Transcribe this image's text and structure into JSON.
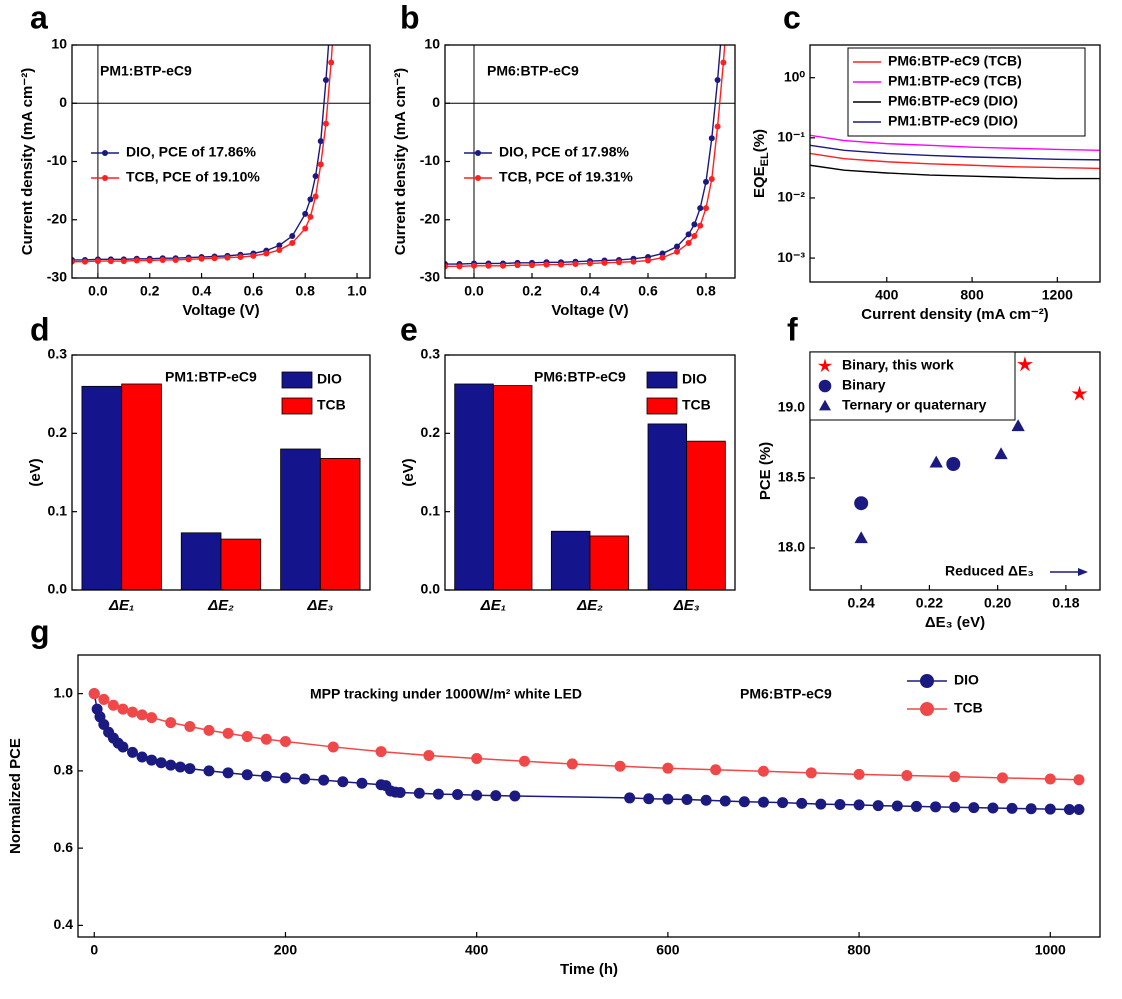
{
  "chart_data": [
    {
      "label": "a",
      "type": "line",
      "annotations": [
        "PM1:BTP-eC9"
      ],
      "xlabel": "Voltage (V)",
      "ylabel": "Current density (mA cm⁻²)",
      "xlim": [
        -0.1,
        1.05
      ],
      "ylim": [
        -30,
        10
      ],
      "xticks": [
        {
          "value": 0,
          "label": "0.0"
        },
        0.2,
        0.4,
        0.6,
        0.8,
        {
          "value": 1,
          "label": "1.0"
        }
      ],
      "yticks": [
        -30,
        -20,
        -10,
        0,
        10
      ],
      "zero_lines": true,
      "legend": "center-left",
      "x": [
        -0.1,
        -0.05,
        0,
        0.05,
        0.1,
        0.15,
        0.2,
        0.25,
        0.3,
        0.35,
        0.4,
        0.45,
        0.5,
        0.55,
        0.6,
        0.65,
        0.7,
        0.75,
        0.8,
        0.82,
        0.84,
        0.86,
        0.88,
        0.9,
        0.92
      ],
      "series": [
        {
          "name": "DIO, PCE of 17.86%",
          "color": "#1a1a80",
          "marker": "circle",
          "values": [
            -26.9,
            -26.9,
            -26.8,
            -26.8,
            -26.8,
            -26.7,
            -26.7,
            -26.6,
            -26.6,
            -26.5,
            -26.4,
            -26.3,
            -26.2,
            -26.0,
            -25.8,
            -25.3,
            -24.4,
            -22.8,
            -19,
            -16.5,
            -12.5,
            -6.5,
            4,
            16,
            null
          ]
        },
        {
          "name": "TCB, PCE of 19.10%",
          "color": "#ff2020",
          "marker": "circle",
          "values": [
            -27.2,
            -27.2,
            -27.1,
            -27.1,
            -27.1,
            -27.0,
            -27.0,
            -26.9,
            -26.9,
            -26.8,
            -26.7,
            -26.6,
            -26.5,
            -26.4,
            -26.2,
            -25.8,
            -25.2,
            -24.0,
            -21.5,
            -19.5,
            -16.0,
            -10.5,
            -3.5,
            7,
            20
          ]
        }
      ]
    },
    {
      "label": "b",
      "type": "line",
      "annotations": [
        "PM6:BTP-eC9"
      ],
      "xlabel": "Voltage (V)",
      "ylabel": "Current density (mA cm⁻²)",
      "xlim": [
        -0.1,
        0.9
      ],
      "ylim": [
        -30,
        10
      ],
      "xticks": [
        {
          "value": 0,
          "label": "0.0"
        },
        0.2,
        0.4,
        0.6,
        0.8
      ],
      "yticks": [
        -30,
        -20,
        -10,
        0,
        10
      ],
      "zero_lines": true,
      "legend": "center-left",
      "x": [
        -0.1,
        -0.05,
        0,
        0.05,
        0.1,
        0.15,
        0.2,
        0.25,
        0.3,
        0.35,
        0.4,
        0.45,
        0.5,
        0.55,
        0.6,
        0.65,
        0.7,
        0.74,
        0.76,
        0.78,
        0.8,
        0.82,
        0.84,
        0.86,
        0.88
      ],
      "series": [
        {
          "name": "DIO, PCE of 17.98%",
          "color": "#1a1a80",
          "marker": "circle",
          "values": [
            -27.6,
            -27.6,
            -27.5,
            -27.5,
            -27.5,
            -27.4,
            -27.4,
            -27.3,
            -27.3,
            -27.2,
            -27.1,
            -27.0,
            -26.9,
            -26.7,
            -26.4,
            -25.8,
            -24.6,
            -22.5,
            -20.8,
            -18.0,
            -13.5,
            -6,
            4,
            16,
            null
          ]
        },
        {
          "name": "TCB, PCE of 19.31%",
          "color": "#ff2020",
          "marker": "circle",
          "values": [
            -28.0,
            -28.0,
            -27.9,
            -27.9,
            -27.9,
            -27.8,
            -27.8,
            -27.7,
            -27.7,
            -27.6,
            -27.5,
            -27.4,
            -27.3,
            -27.2,
            -27.0,
            -26.5,
            -25.5,
            -24.0,
            -22.8,
            -21,
            -18.0,
            -13,
            -4,
            7,
            20
          ]
        }
      ]
    },
    {
      "label": "c",
      "type": "line",
      "xlabel": "Current density (mA cm⁻²)",
      "ylabel": "EQE",
      "ylabel_sub": "EL",
      "ylabel_unit": "(%)",
      "log_y": true,
      "xlim": [
        40,
        1400
      ],
      "ylim": [
        0.0004,
        3.5
      ],
      "xticks": [
        400,
        800,
        1200
      ],
      "yticks": [
        {
          "value": 0.001,
          "label": "10⁻³"
        },
        {
          "value": 0.01,
          "label": "10⁻²"
        },
        {
          "value": 0.1,
          "label": "10⁻¹"
        },
        {
          "value": 1,
          "label": "10⁰"
        }
      ],
      "legend": "upper-right",
      "legend_frame": true,
      "x": [
        40,
        200,
        400,
        600,
        800,
        1000,
        1200,
        1400
      ],
      "series": [
        {
          "name": "PM6:BTP-eC9 (TCB)",
          "color": "#ff2020",
          "values": [
            0.055,
            0.045,
            0.04,
            0.037,
            0.035,
            0.033,
            0.032,
            0.031
          ]
        },
        {
          "name": "PM1:BTP-eC9 (TCB)",
          "color": "#ff00ff",
          "values": [
            0.11,
            0.09,
            0.08,
            0.075,
            0.07,
            0.067,
            0.064,
            0.062
          ]
        },
        {
          "name": "PM6:BTP-eC9 (DIO)",
          "color": "#000000",
          "values": [
            0.035,
            0.029,
            0.026,
            0.024,
            0.023,
            0.022,
            0.021,
            0.021
          ]
        },
        {
          "name": "PM1:BTP-eC9 (DIO)",
          "color": "#1a1a80",
          "values": [
            0.075,
            0.062,
            0.055,
            0.051,
            0.048,
            0.046,
            0.044,
            0.043
          ]
        }
      ]
    },
    {
      "label": "d",
      "type": "bar",
      "annotations": [
        "PM1:BTP-eC9"
      ],
      "ylabel": "(eV)",
      "ylim": [
        0,
        0.3
      ],
      "yticks": [
        {
          "value": 0,
          "label": "0.0"
        },
        0.1,
        0.2,
        0.3
      ],
      "legend": "upper-right",
      "categories": [
        "ΔE₁",
        "ΔE₂",
        "ΔE₃"
      ],
      "series": [
        {
          "name": "DIO",
          "color": "#14148c",
          "values": [
            0.26,
            0.073,
            0.18
          ]
        },
        {
          "name": "TCB",
          "color": "#ff0000",
          "values": [
            0.263,
            0.065,
            0.168
          ]
        }
      ]
    },
    {
      "label": "e",
      "type": "bar",
      "annotations": [
        "PM6:BTP-eC9"
      ],
      "ylabel": "(eV)",
      "ylim": [
        0,
        0.3
      ],
      "yticks": [
        {
          "value": 0,
          "label": "0.0"
        },
        0.1,
        0.2,
        0.3
      ],
      "legend": "upper-right",
      "categories": [
        "ΔE₁",
        "ΔE₂",
        "ΔE₃"
      ],
      "series": [
        {
          "name": "DIO",
          "color": "#14148c",
          "values": [
            0.263,
            0.075,
            0.212
          ]
        },
        {
          "name": "TCB",
          "color": "#ff0000",
          "values": [
            0.261,
            0.069,
            0.19
          ]
        }
      ]
    },
    {
      "label": "f",
      "type": "scatter",
      "annotations": [
        "Reduced ΔE₃"
      ],
      "xlabel": "ΔE₃ (eV)",
      "ylabel": "PCE (%)",
      "xlim": [
        0.255,
        0.17
      ],
      "ylim": [
        17.7,
        19.4
      ],
      "xticks": [
        0.24,
        0.22,
        {
          "value": 0.2,
          "label": "0.20"
        },
        0.18
      ],
      "yticks": [
        {
          "value": 18,
          "label": "18.0"
        },
        18.5,
        {
          "value": 19,
          "label": "19.0"
        }
      ],
      "legend": "upper-left",
      "legend_frame": true,
      "series": [
        {
          "name": "Binary, this work",
          "color": "#ff0000",
          "marker": "star",
          "x": [
            0.192,
            0.176
          ],
          "values": [
            19.31,
            19.1
          ]
        },
        {
          "name": "Binary",
          "color": "#1a1a80",
          "marker": "circle",
          "x": [
            0.24,
            0.213
          ],
          "values": [
            18.32,
            18.6
          ]
        },
        {
          "name": "Ternary or quaternary",
          "color": "#1a1a80",
          "marker": "triangle",
          "x": [
            0.24,
            0.218,
            0.199,
            0.194
          ],
          "values": [
            18.07,
            18.61,
            18.67,
            18.87
          ]
        }
      ]
    },
    {
      "label": "g",
      "type": "line",
      "annotations": [
        "MPP tracking under 1000W/m² white LED",
        "PM6:BTP-eC9"
      ],
      "xlabel": "Time (h)",
      "ylabel": "Normalized PCE",
      "xlim": [
        -17,
        1052
      ],
      "ylim": [
        0.37,
        1.1
      ],
      "xticks": [
        0,
        200,
        400,
        600,
        800,
        1000
      ],
      "yticks": [
        0.4,
        0.6,
        0.8,
        {
          "value": 1,
          "label": "1.0"
        }
      ],
      "legend": "upper-right",
      "series": [
        {
          "name": "DIO",
          "color": "#1a1a80",
          "marker": "circle",
          "x": [
            0,
            3,
            6,
            10,
            15,
            20,
            25,
            30,
            40,
            50,
            60,
            70,
            80,
            90,
            100,
            120,
            140,
            160,
            180,
            200,
            220,
            240,
            260,
            280,
            300,
            305,
            310,
            315,
            320,
            340,
            360,
            380,
            400,
            420,
            440,
            560,
            580,
            600,
            620,
            640,
            660,
            680,
            700,
            720,
            740,
            760,
            780,
            800,
            820,
            840,
            860,
            880,
            900,
            920,
            940,
            960,
            980,
            1000,
            1020,
            1030
          ],
          "values": [
            1.0,
            0.96,
            0.94,
            0.92,
            0.9,
            0.885,
            0.872,
            0.862,
            0.848,
            0.836,
            0.828,
            0.821,
            0.815,
            0.81,
            0.806,
            0.8,
            0.795,
            0.79,
            0.786,
            0.782,
            0.779,
            0.776,
            0.772,
            0.768,
            0.764,
            0.762,
            0.748,
            0.745,
            0.744,
            0.742,
            0.74,
            0.739,
            0.737,
            0.736,
            0.735,
            0.73,
            0.728,
            0.727,
            0.726,
            0.724,
            0.722,
            0.72,
            0.719,
            0.718,
            0.716,
            0.714,
            0.713,
            0.712,
            0.71,
            0.709,
            0.708,
            0.707,
            0.706,
            0.705,
            0.704,
            0.703,
            0.702,
            0.701,
            0.7,
            0.7
          ]
        },
        {
          "name": "TCB",
          "color": "#f04848",
          "marker": "circle",
          "x": [
            0,
            10,
            20,
            30,
            40,
            50,
            60,
            80,
            100,
            120,
            140,
            160,
            180,
            200,
            250,
            300,
            350,
            400,
            450,
            500,
            550,
            600,
            650,
            700,
            750,
            800,
            850,
            900,
            950,
            1000,
            1030
          ],
          "values": [
            1.0,
            0.985,
            0.97,
            0.96,
            0.952,
            0.945,
            0.938,
            0.925,
            0.915,
            0.905,
            0.897,
            0.889,
            0.882,
            0.876,
            0.862,
            0.85,
            0.84,
            0.832,
            0.825,
            0.818,
            0.812,
            0.807,
            0.803,
            0.799,
            0.795,
            0.791,
            0.788,
            0.785,
            0.782,
            0.779,
            0.777
          ]
        }
      ]
    }
  ]
}
